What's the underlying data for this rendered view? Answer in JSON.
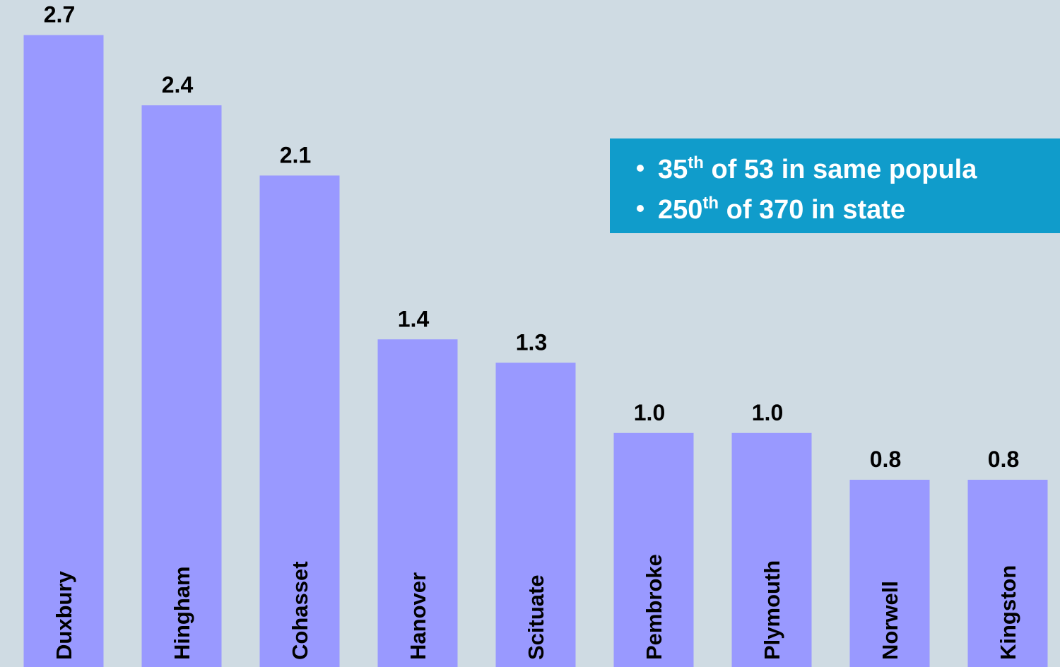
{
  "chart_data": {
    "type": "bar",
    "categories": [
      "Duxbury",
      "Hingham",
      "Cohasset",
      "Hanover",
      "Scituate",
      "Pembroke",
      "Plymouth",
      "Norwell",
      "Kingston"
    ],
    "values": [
      2.7,
      2.4,
      2.1,
      1.4,
      1.3,
      1.0,
      1.0,
      0.8,
      0.8
    ],
    "value_labels": [
      "2.7",
      "2.4",
      "2.1",
      "1.4",
      "1.3",
      "1.0",
      "1.0",
      "0.8",
      "0.8"
    ],
    "color": "#9999ff",
    "ylim": [
      0,
      2.85
    ],
    "annotations": [
      {
        "rank": "35",
        "suffix": "th",
        "text": " of 53 in same popula"
      },
      {
        "rank": "250",
        "suffix": "th",
        "text": " of 370 in state"
      }
    ]
  }
}
